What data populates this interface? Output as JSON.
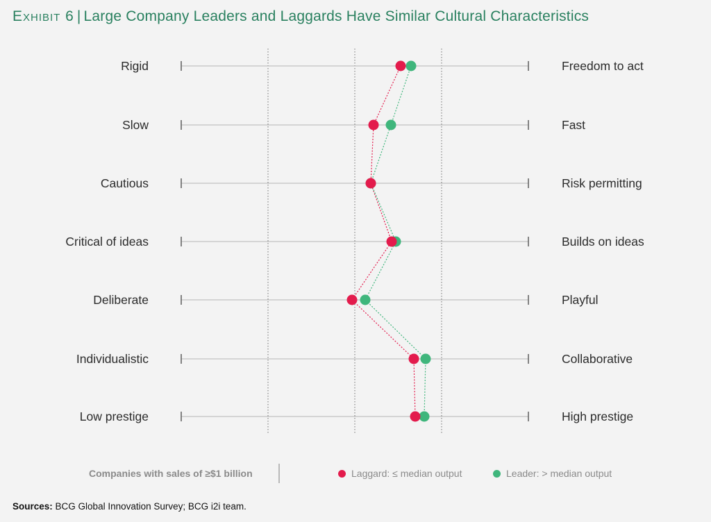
{
  "header": {
    "exhibit": "Exhibit 6",
    "separator": "|",
    "title": "Large Company Leaders and Laggards Have Similar Cultural Characteristics"
  },
  "chart_data": {
    "type": "scatter",
    "scale_range": [
      0,
      1
    ],
    "rows": [
      {
        "left": "Rigid",
        "right": "Freedom to act"
      },
      {
        "left": "Slow",
        "right": "Fast"
      },
      {
        "left": "Cautious",
        "right": "Risk permitting"
      },
      {
        "left": "Critical of ideas",
        "right": "Builds on ideas"
      },
      {
        "left": "Deliberate",
        "right": "Playful"
      },
      {
        "left": "Individualistic",
        "right": "Collaborative"
      },
      {
        "left": "Low prestige",
        "right": "High prestige"
      }
    ],
    "series": [
      {
        "name": "Laggard: ≤ median output",
        "color": "#e31b4c",
        "values": [
          0.632,
          0.554,
          0.546,
          0.606,
          0.492,
          0.67,
          0.674
        ]
      },
      {
        "name": "Leader: > median output",
        "color": "#3fb67c",
        "values": [
          0.662,
          0.604,
          0.546,
          0.618,
          0.53,
          0.704,
          0.7
        ]
      }
    ],
    "gridlines": [
      0.25,
      0.5,
      0.75
    ],
    "connector_style": "dotted",
    "legend_position": "bottom"
  },
  "legend": {
    "note": "Companies with sales of ≥$1 billion"
  },
  "footer": {
    "sources_label": "Sources:",
    "sources_text": "BCG Global Innovation Survey; BCG i2i team."
  }
}
